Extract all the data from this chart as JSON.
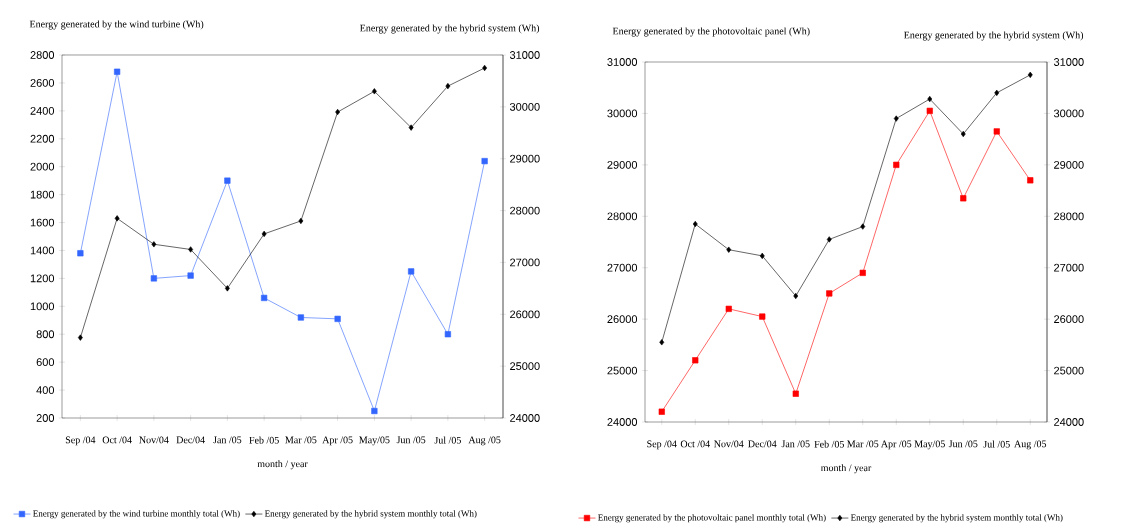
{
  "chart_data": [
    {
      "type": "line",
      "categories": [
        "Sep /04",
        "Oct /04",
        "Nov/04",
        "Dec/04",
        "Jan /05",
        "Feb /05",
        "Mar /05",
        "Apr /05",
        "May/05",
        "Jun /05",
        "Jul /05",
        "Aug /05"
      ],
      "xlabel": "month / year",
      "ylabel": "Energy generated by the wind turbine (Wh)",
      "y2label": "Energy generated by the hybrid system (Wh)",
      "ylim": [
        200,
        2800
      ],
      "yticks": [
        200,
        400,
        600,
        800,
        1000,
        1200,
        1400,
        1600,
        1800,
        2000,
        2200,
        2400,
        2600,
        2800
      ],
      "y2lim": [
        24000,
        31000
      ],
      "y2ticks": [
        24000,
        25000,
        26000,
        27000,
        28000,
        29000,
        30000,
        31000
      ],
      "legend": "bottom",
      "grid": false,
      "series": [
        {
          "name": "Energy generated by the wind turbine monthly total (Wh)",
          "color": "#3366ff",
          "marker": "square",
          "values": [
            1380,
            2680,
            1200,
            1220,
            1900,
            1060,
            920,
            910,
            250,
            1250,
            800,
            2040
          ]
        },
        {
          "name": "Energy generated by the hybrid system monthly total (Wh)",
          "color": "#000000",
          "marker": "diamond",
          "axis": "y2",
          "values": [
            25550,
            27850,
            27350,
            27250,
            26500,
            27550,
            27800,
            29900,
            30300,
            29600,
            30400,
            30750
          ]
        }
      ]
    },
    {
      "type": "line",
      "categories": [
        "Sep /04",
        "Oct /04",
        "Nov/04",
        "Dec/04",
        "Jan /05",
        "Feb /05",
        "Mar /05",
        "Apr /05",
        "May/05",
        "Jun /05",
        "Jul /05",
        "Aug /05"
      ],
      "xlabel": "month / year",
      "ylabel": "Energy generated by the photovoltaic panel (Wh)",
      "y2label": "Energy generated by the hybrid system (Wh)",
      "ylim": [
        24000,
        31000
      ],
      "yticks": [
        24000,
        25000,
        26000,
        27000,
        28000,
        29000,
        30000,
        31000
      ],
      "y2lim": [
        24000,
        31000
      ],
      "y2ticks": [
        24000,
        25000,
        26000,
        27000,
        28000,
        29000,
        30000,
        31000
      ],
      "legend": "bottom",
      "grid": false,
      "series": [
        {
          "name": "Energy generated by the photovoltaic panel monthly total (Wh)",
          "color": "#ff0000",
          "marker": "square",
          "values": [
            24200,
            25200,
            26200,
            26050,
            24550,
            26500,
            26900,
            29000,
            30050,
            28350,
            29650,
            28700
          ]
        },
        {
          "name": "Energy generated by the hybrid system monthly total (Wh)",
          "color": "#000000",
          "marker": "diamond",
          "axis": "y2",
          "values": [
            25550,
            27850,
            27350,
            27230,
            26450,
            27550,
            27800,
            29900,
            30280,
            29600,
            30400,
            30750
          ]
        }
      ]
    }
  ]
}
